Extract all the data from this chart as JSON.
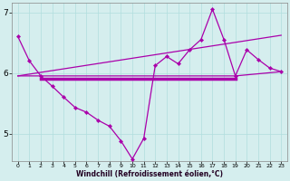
{
  "xlabel": "Windchill (Refroidissement éolien,°C)",
  "background_color": "#d5eeee",
  "line_color": "#aa00aa",
  "xlim": [
    -0.5,
    23.5
  ],
  "ylim": [
    4.55,
    7.15
  ],
  "yticks": [
    5,
    6,
    7
  ],
  "xticks": [
    0,
    1,
    2,
    3,
    4,
    5,
    6,
    7,
    8,
    9,
    10,
    11,
    12,
    13,
    14,
    15,
    16,
    17,
    18,
    19,
    20,
    21,
    22,
    23
  ],
  "series1_x": [
    0,
    1,
    2,
    3,
    4,
    5,
    6,
    7,
    8,
    9,
    10,
    11,
    12,
    13,
    14,
    15,
    16,
    17,
    18,
    19,
    20,
    21,
    22,
    23
  ],
  "series1_y": [
    6.6,
    6.2,
    5.95,
    5.78,
    5.6,
    5.43,
    5.35,
    5.22,
    5.12,
    4.88,
    4.58,
    4.92,
    6.12,
    6.27,
    6.15,
    6.38,
    6.55,
    7.05,
    6.55,
    5.95,
    6.38,
    6.22,
    6.08,
    6.02
  ],
  "series2_x": [
    0,
    23
  ],
  "series2_y": [
    5.95,
    6.62
  ],
  "series3_x": [
    0,
    19,
    23
  ],
  "series3_y": [
    5.95,
    5.95,
    6.02
  ],
  "series4_x": [
    2,
    19
  ],
  "series4_y": [
    5.9,
    5.9
  ]
}
